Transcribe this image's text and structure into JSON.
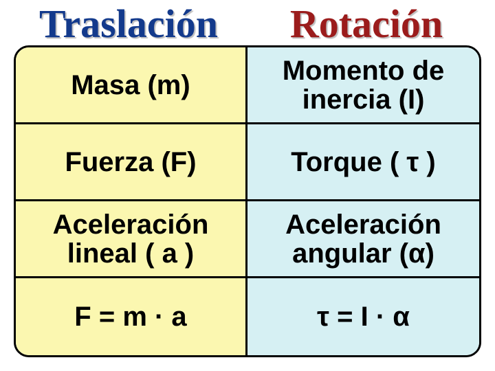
{
  "headers": {
    "left": {
      "text": "Traslación",
      "color": "#133a8c",
      "fontsize": 58
    },
    "right": {
      "text": "Rotación",
      "color": "#9b1c1c",
      "fontsize": 58
    }
  },
  "colors": {
    "left_bg": "#fbf7b0",
    "right_bg": "#d6f0f3",
    "border": "#000000",
    "text": "#000000"
  },
  "cell_fontsize": 40,
  "rows": [
    {
      "left": "Masa   (m)",
      "right": "Momento de inercia   (I)"
    },
    {
      "left": "Fuerza   (F)",
      "right": "Torque ( τ )"
    },
    {
      "left": "Aceleración lineal   ( a )",
      "right": "Aceleración angular  (α)"
    },
    {
      "left": "F = m · a",
      "right": "τ = I · α"
    }
  ]
}
